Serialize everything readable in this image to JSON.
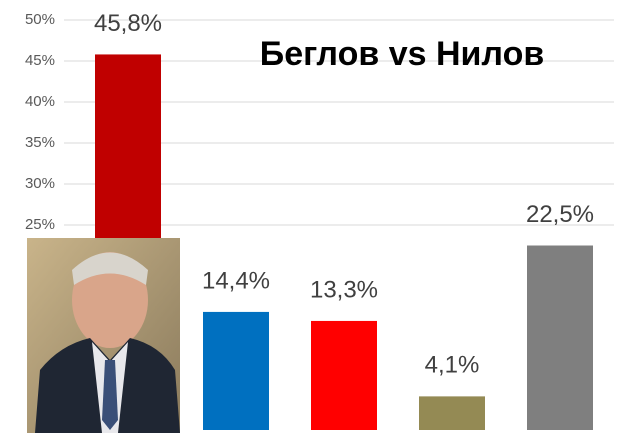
{
  "chart_data": {
    "type": "bar",
    "title": "Беглов vs Нилов",
    "categories": [
      null,
      null,
      null,
      null,
      null
    ],
    "values": [
      45.8,
      14.4,
      13.3,
      4.1,
      22.5
    ],
    "value_labels": [
      "45,8%",
      "14,4%",
      "13,3%",
      "4,1%",
      "22,5%"
    ],
    "colors": [
      "#c00000",
      "#0070c0",
      "#ff0000",
      "#948a54",
      "#7f7f7f"
    ],
    "ylim": [
      0,
      50
    ],
    "yticks": [
      {
        "value": 25,
        "label": "25%"
      },
      {
        "value": 30,
        "label": "30%"
      },
      {
        "value": 35,
        "label": "35%"
      },
      {
        "value": 40,
        "label": "40%"
      },
      {
        "value": 45,
        "label": "45%"
      },
      {
        "value": 50,
        "label": "50%"
      }
    ],
    "grid": true
  }
}
